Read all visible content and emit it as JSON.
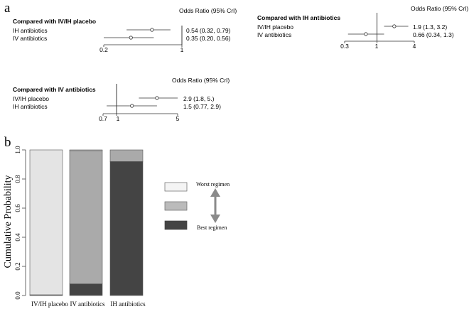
{
  "panel_labels": {
    "a": "a",
    "b": "b"
  },
  "chart_data": [
    {
      "type": "forest",
      "title": "Compared with IV/IH placebo",
      "header": "Odds Ratio (95% CrI)",
      "xscale": "log",
      "xlim": [
        0.2,
        1
      ],
      "ticks": [
        "0.2",
        "1"
      ],
      "reference": 1,
      "rows": [
        {
          "label": "IH antibiotics",
          "or": 0.54,
          "lo": 0.32,
          "hi": 0.79,
          "text": "0.54 (0.32, 0.79)"
        },
        {
          "label": "IV antibiotics",
          "or": 0.35,
          "lo": 0.2,
          "hi": 0.56,
          "text": "0.35 (0.20, 0.56)"
        }
      ]
    },
    {
      "type": "forest",
      "title": "Compared with IH antibiotics",
      "header": "Odds Ratio (95% CrI)",
      "xscale": "log",
      "xlim": [
        0.3,
        4
      ],
      "ticks": [
        "0.3",
        "1",
        "4"
      ],
      "reference": 1,
      "rows": [
        {
          "label": "IV/IH placebo",
          "or": 1.9,
          "lo": 1.3,
          "hi": 3.2,
          "text": "1.9 (1.3, 3.2)"
        },
        {
          "label": "IV antibiotics",
          "or": 0.66,
          "lo": 0.34,
          "hi": 1.3,
          "text": "0.66 (0.34, 1.3)"
        }
      ]
    },
    {
      "type": "forest",
      "title": "Compared with IV antibiotics",
      "header": "Odds Ratio (95% CrI)",
      "xscale": "log",
      "xlim": [
        0.7,
        5
      ],
      "ticks": [
        "0.7",
        "1",
        "5"
      ],
      "reference": 1,
      "rows": [
        {
          "label": "IV/IH placebo",
          "or": 2.9,
          "lo": 1.8,
          "hi": 5.0,
          "text": "2.9 (1.8,  5.)"
        },
        {
          "label": "IH antibiotics",
          "or": 1.5,
          "lo": 0.77,
          "hi": 2.9,
          "text": "1.5 (0.77, 2.9)"
        }
      ]
    },
    {
      "type": "bar",
      "stacked": true,
      "ylabel": "Cumulative Probability",
      "ylim": [
        0,
        1
      ],
      "yticks": [
        "0.0",
        "0.2",
        "0.4",
        "0.6",
        "0.8",
        "1.0"
      ],
      "categories": [
        "IV/IH placebo",
        "IV antibiotics",
        "IH antibiotics"
      ],
      "series": [
        {
          "key": "best",
          "color": "#444444",
          "values": [
            0.003,
            0.08,
            0.92
          ]
        },
        {
          "key": "middle",
          "color": "#aaaaaa",
          "values": [
            0.002,
            0.915,
            0.08
          ]
        },
        {
          "key": "worst",
          "color": "#e4e4e4",
          "values": [
            0.995,
            0.005,
            0.0
          ]
        }
      ],
      "legend": {
        "placement": "right",
        "worst_label": "Worst regimen",
        "best_label": "Best regimen",
        "swatches": [
          "#f4f4f4",
          "#bbbbbb",
          "#444444"
        ],
        "arrow_icon": "double-headed-vertical-arrow"
      }
    }
  ]
}
